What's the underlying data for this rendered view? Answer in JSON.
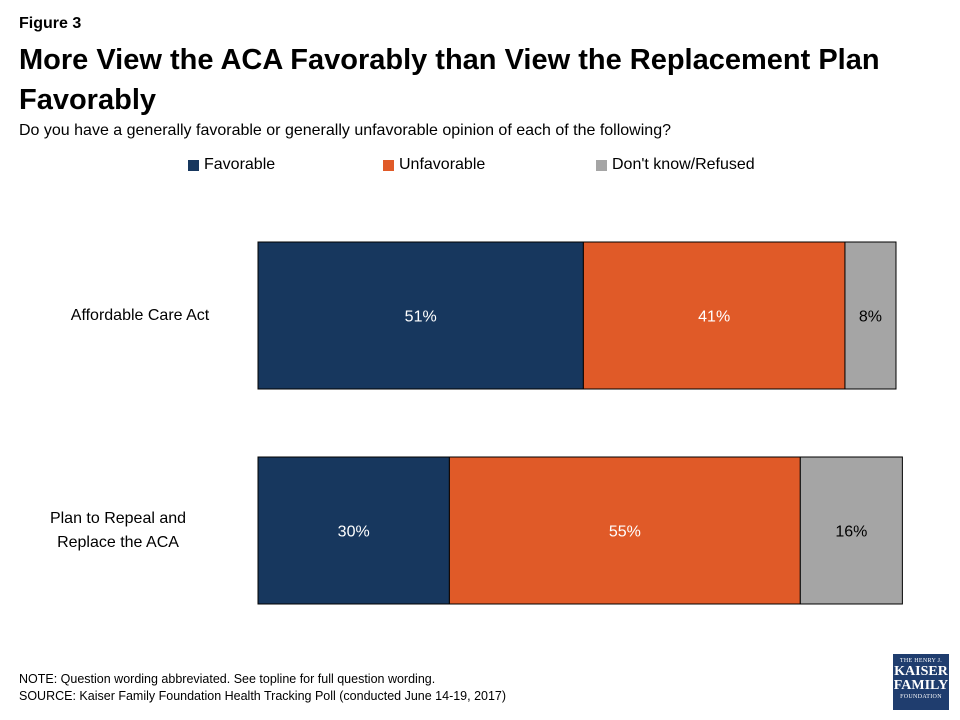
{
  "header": {
    "figure_label": "Figure 3",
    "title": "More View the ACA Favorably than View the Replacement Plan Favorably",
    "subtitle": "Do you have a generally favorable or generally unfavorable opinion of each of the following?"
  },
  "chart_data": {
    "type": "bar",
    "orientation": "horizontal",
    "stacked": true,
    "categories": [
      "Affordable Care Act",
      "Plan to Repeal and Replace the ACA"
    ],
    "series": [
      {
        "name": "Favorable",
        "values": [
          51,
          30
        ],
        "labels": [
          "51%",
          "30%"
        ],
        "color": "#17375e",
        "label_color": "#ffffff"
      },
      {
        "name": "Unfavorable",
        "values": [
          41,
          55
        ],
        "labels": [
          "41%",
          "55%"
        ],
        "color": "#e05a28",
        "label_color": "#ffffff"
      },
      {
        "name": "Don't know/Refused",
        "values": [
          8,
          16
        ],
        "labels": [
          "8%",
          "16%"
        ],
        "color": "#a5a5a5",
        "label_color": "#000000"
      }
    ],
    "legend_position": "top",
    "grid": false,
    "units": "%"
  },
  "footer": {
    "note": "NOTE: Question wording abbreviated. See topline for full question wording.",
    "source": "SOURCE: Kaiser Family Foundation Health Tracking Poll (conducted June 14-19, 2017)"
  },
  "logo": {
    "line1": "THE HENRY J.",
    "line2": "KAISER",
    "line3": "FAMILY",
    "line4": "FOUNDATION"
  }
}
